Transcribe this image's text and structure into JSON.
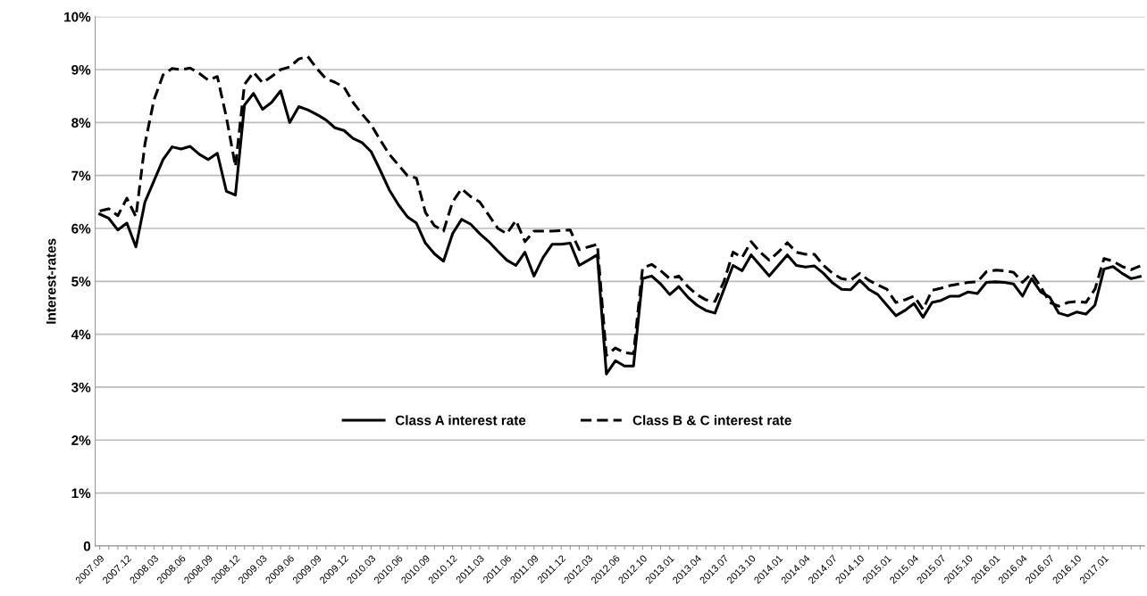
{
  "chart_data": {
    "type": "line",
    "ylabel": "Interest-rates",
    "categories": [
      "2007.09",
      null,
      null,
      "2007.12",
      null,
      null,
      "2008.03",
      null,
      null,
      "2008.06",
      null,
      null,
      "2008.09",
      null,
      null,
      "2008.12",
      null,
      null,
      "2009.03",
      null,
      null,
      "2009.06",
      null,
      null,
      "2009.09",
      null,
      null,
      "2009.12",
      null,
      null,
      "2010.03",
      null,
      null,
      "2010.06",
      null,
      null,
      "2010.09",
      null,
      null,
      "2010.12",
      null,
      null,
      "2011.03",
      null,
      null,
      "2011.06",
      null,
      null,
      "2011.09",
      null,
      null,
      "2011.12",
      null,
      null,
      "2012.03",
      null,
      null,
      "2012.06",
      null,
      null,
      "2012.10",
      null,
      null,
      "2013.01",
      null,
      null,
      "2013.04",
      null,
      null,
      "2013.07",
      null,
      null,
      "2013.10",
      null,
      null,
      "2014.01",
      null,
      null,
      "2014.04",
      null,
      null,
      "2014.07",
      null,
      null,
      "2014.10",
      null,
      null,
      "2015.01",
      null,
      null,
      "2015.04",
      null,
      null,
      "2015.07",
      null,
      null,
      "2015.10",
      null,
      null,
      "2016.01",
      null,
      null,
      "2016.04",
      null,
      null,
      "2016.07",
      null,
      null,
      "2016.10",
      null,
      null,
      "2017.01",
      null,
      null,
      null,
      null
    ],
    "series": [
      {
        "name": "Class A interest rate",
        "color": "#000000",
        "line_style": "solid",
        "values": [
          6.27,
          6.19,
          5.97,
          6.1,
          5.65,
          6.5,
          6.9,
          7.3,
          7.54,
          7.5,
          7.55,
          7.4,
          7.3,
          7.42,
          6.7,
          6.63,
          8.33,
          8.55,
          8.25,
          8.38,
          8.6,
          8.0,
          8.3,
          8.24,
          8.15,
          8.05,
          7.9,
          7.85,
          7.7,
          7.62,
          7.45,
          7.1,
          6.73,
          6.45,
          6.22,
          6.1,
          5.72,
          5.52,
          5.38,
          5.9,
          6.17,
          6.08,
          5.9,
          5.75,
          5.57,
          5.4,
          5.3,
          5.55,
          5.1,
          5.45,
          5.7,
          5.7,
          5.72,
          5.3,
          5.4,
          5.5,
          3.25,
          3.5,
          3.4,
          3.4,
          5.05,
          5.1,
          4.95,
          4.75,
          4.9,
          4.7,
          4.55,
          4.45,
          4.4,
          4.85,
          5.3,
          5.2,
          5.5,
          5.3,
          5.1,
          5.3,
          5.5,
          5.3,
          5.27,
          5.29,
          5.15,
          4.97,
          4.85,
          4.84,
          5.02,
          4.85,
          4.75,
          4.55,
          4.35,
          4.45,
          4.58,
          4.32,
          4.6,
          4.64,
          4.72,
          4.72,
          4.8,
          4.77,
          4.98,
          4.99,
          4.98,
          4.95,
          4.72,
          5.05,
          4.8,
          4.7,
          4.4,
          4.35,
          4.42,
          4.38,
          4.55,
          5.23,
          5.28,
          5.15,
          5.05,
          5.09
        ]
      },
      {
        "name": "Class B & C interest rate",
        "color": "#000000",
        "line_style": "dashed",
        "values": [
          6.33,
          6.37,
          6.24,
          6.57,
          6.22,
          7.6,
          8.43,
          8.9,
          9.02,
          9.0,
          9.03,
          8.93,
          8.8,
          8.87,
          8.1,
          7.17,
          8.72,
          8.95,
          8.75,
          8.87,
          9.0,
          9.05,
          9.2,
          9.25,
          9.02,
          8.83,
          8.76,
          8.67,
          8.38,
          8.16,
          7.96,
          7.67,
          7.4,
          7.2,
          7.0,
          6.95,
          6.3,
          6.05,
          5.95,
          6.5,
          6.75,
          6.6,
          6.5,
          6.25,
          6.0,
          5.9,
          6.15,
          5.75,
          5.95,
          5.95,
          5.95,
          5.96,
          5.97,
          5.6,
          5.65,
          5.7,
          3.6,
          3.74,
          3.65,
          3.63,
          5.25,
          5.32,
          5.2,
          5.05,
          5.1,
          4.9,
          4.75,
          4.65,
          4.62,
          5.0,
          5.55,
          5.45,
          5.75,
          5.55,
          5.4,
          5.55,
          5.73,
          5.55,
          5.51,
          5.51,
          5.3,
          5.15,
          5.05,
          5.02,
          5.15,
          5.02,
          4.93,
          4.85,
          4.6,
          4.65,
          4.72,
          4.47,
          4.83,
          4.87,
          4.92,
          4.95,
          4.98,
          4.99,
          5.18,
          5.21,
          5.2,
          5.17,
          4.98,
          5.15,
          4.9,
          4.6,
          4.53,
          4.6,
          4.62,
          4.6,
          4.85,
          5.43,
          5.38,
          5.28,
          5.22,
          5.29
        ]
      }
    ],
    "ylim": [
      0,
      10
    ],
    "yticks": [
      {
        "value": 0,
        "label": "0"
      },
      {
        "value": 1,
        "label": "1%"
      },
      {
        "value": 2,
        "label": "2%"
      },
      {
        "value": 3,
        "label": "3%"
      },
      {
        "value": 4,
        "label": "4%"
      },
      {
        "value": 5,
        "label": "5%"
      },
      {
        "value": 6,
        "label": "6%"
      },
      {
        "value": 7,
        "label": "7%"
      },
      {
        "value": 8,
        "label": "8%"
      },
      {
        "value": 9,
        "label": "9%"
      },
      {
        "value": 10,
        "label": "10%"
      }
    ],
    "grid": "y",
    "legend": "bottom",
    "marker": "none"
  }
}
